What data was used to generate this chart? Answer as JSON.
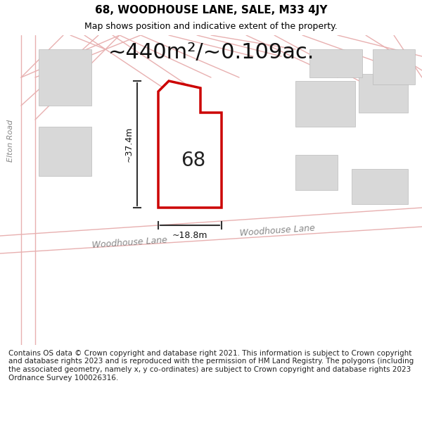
{
  "title": "68, WOODHOUSE LANE, SALE, M33 4JY",
  "subtitle": "Map shows position and indicative extent of the property.",
  "area_text": "~440m²/~0.109ac.",
  "dim_width": "~18.8m",
  "dim_height": "~37.4m",
  "number_label": "68",
  "street_label_1": "Woodhouse Lane",
  "street_label_2": "Woodhouse Lane",
  "road_label": "Elton Road",
  "footer": "Contains OS data © Crown copyright and database right 2021. This information is subject to Crown copyright and database rights 2023 and is reproduced with the permission of HM Land Registry. The polygons (including the associated geometry, namely x, y co-ordinates) are subject to Crown copyright and database rights 2023 Ordnance Survey 100026316.",
  "bg_color": "#ffffff",
  "map_bg": "#f5f0f0",
  "plot_color": "#ffffff",
  "plot_outline": "#cc0000",
  "building_color": "#d8d8d8",
  "road_line_color": "#e8b0b0",
  "dim_line_color": "#333333",
  "title_fontsize": 11,
  "subtitle_fontsize": 9,
  "area_fontsize": 22,
  "number_fontsize": 20,
  "footer_fontsize": 7.5
}
